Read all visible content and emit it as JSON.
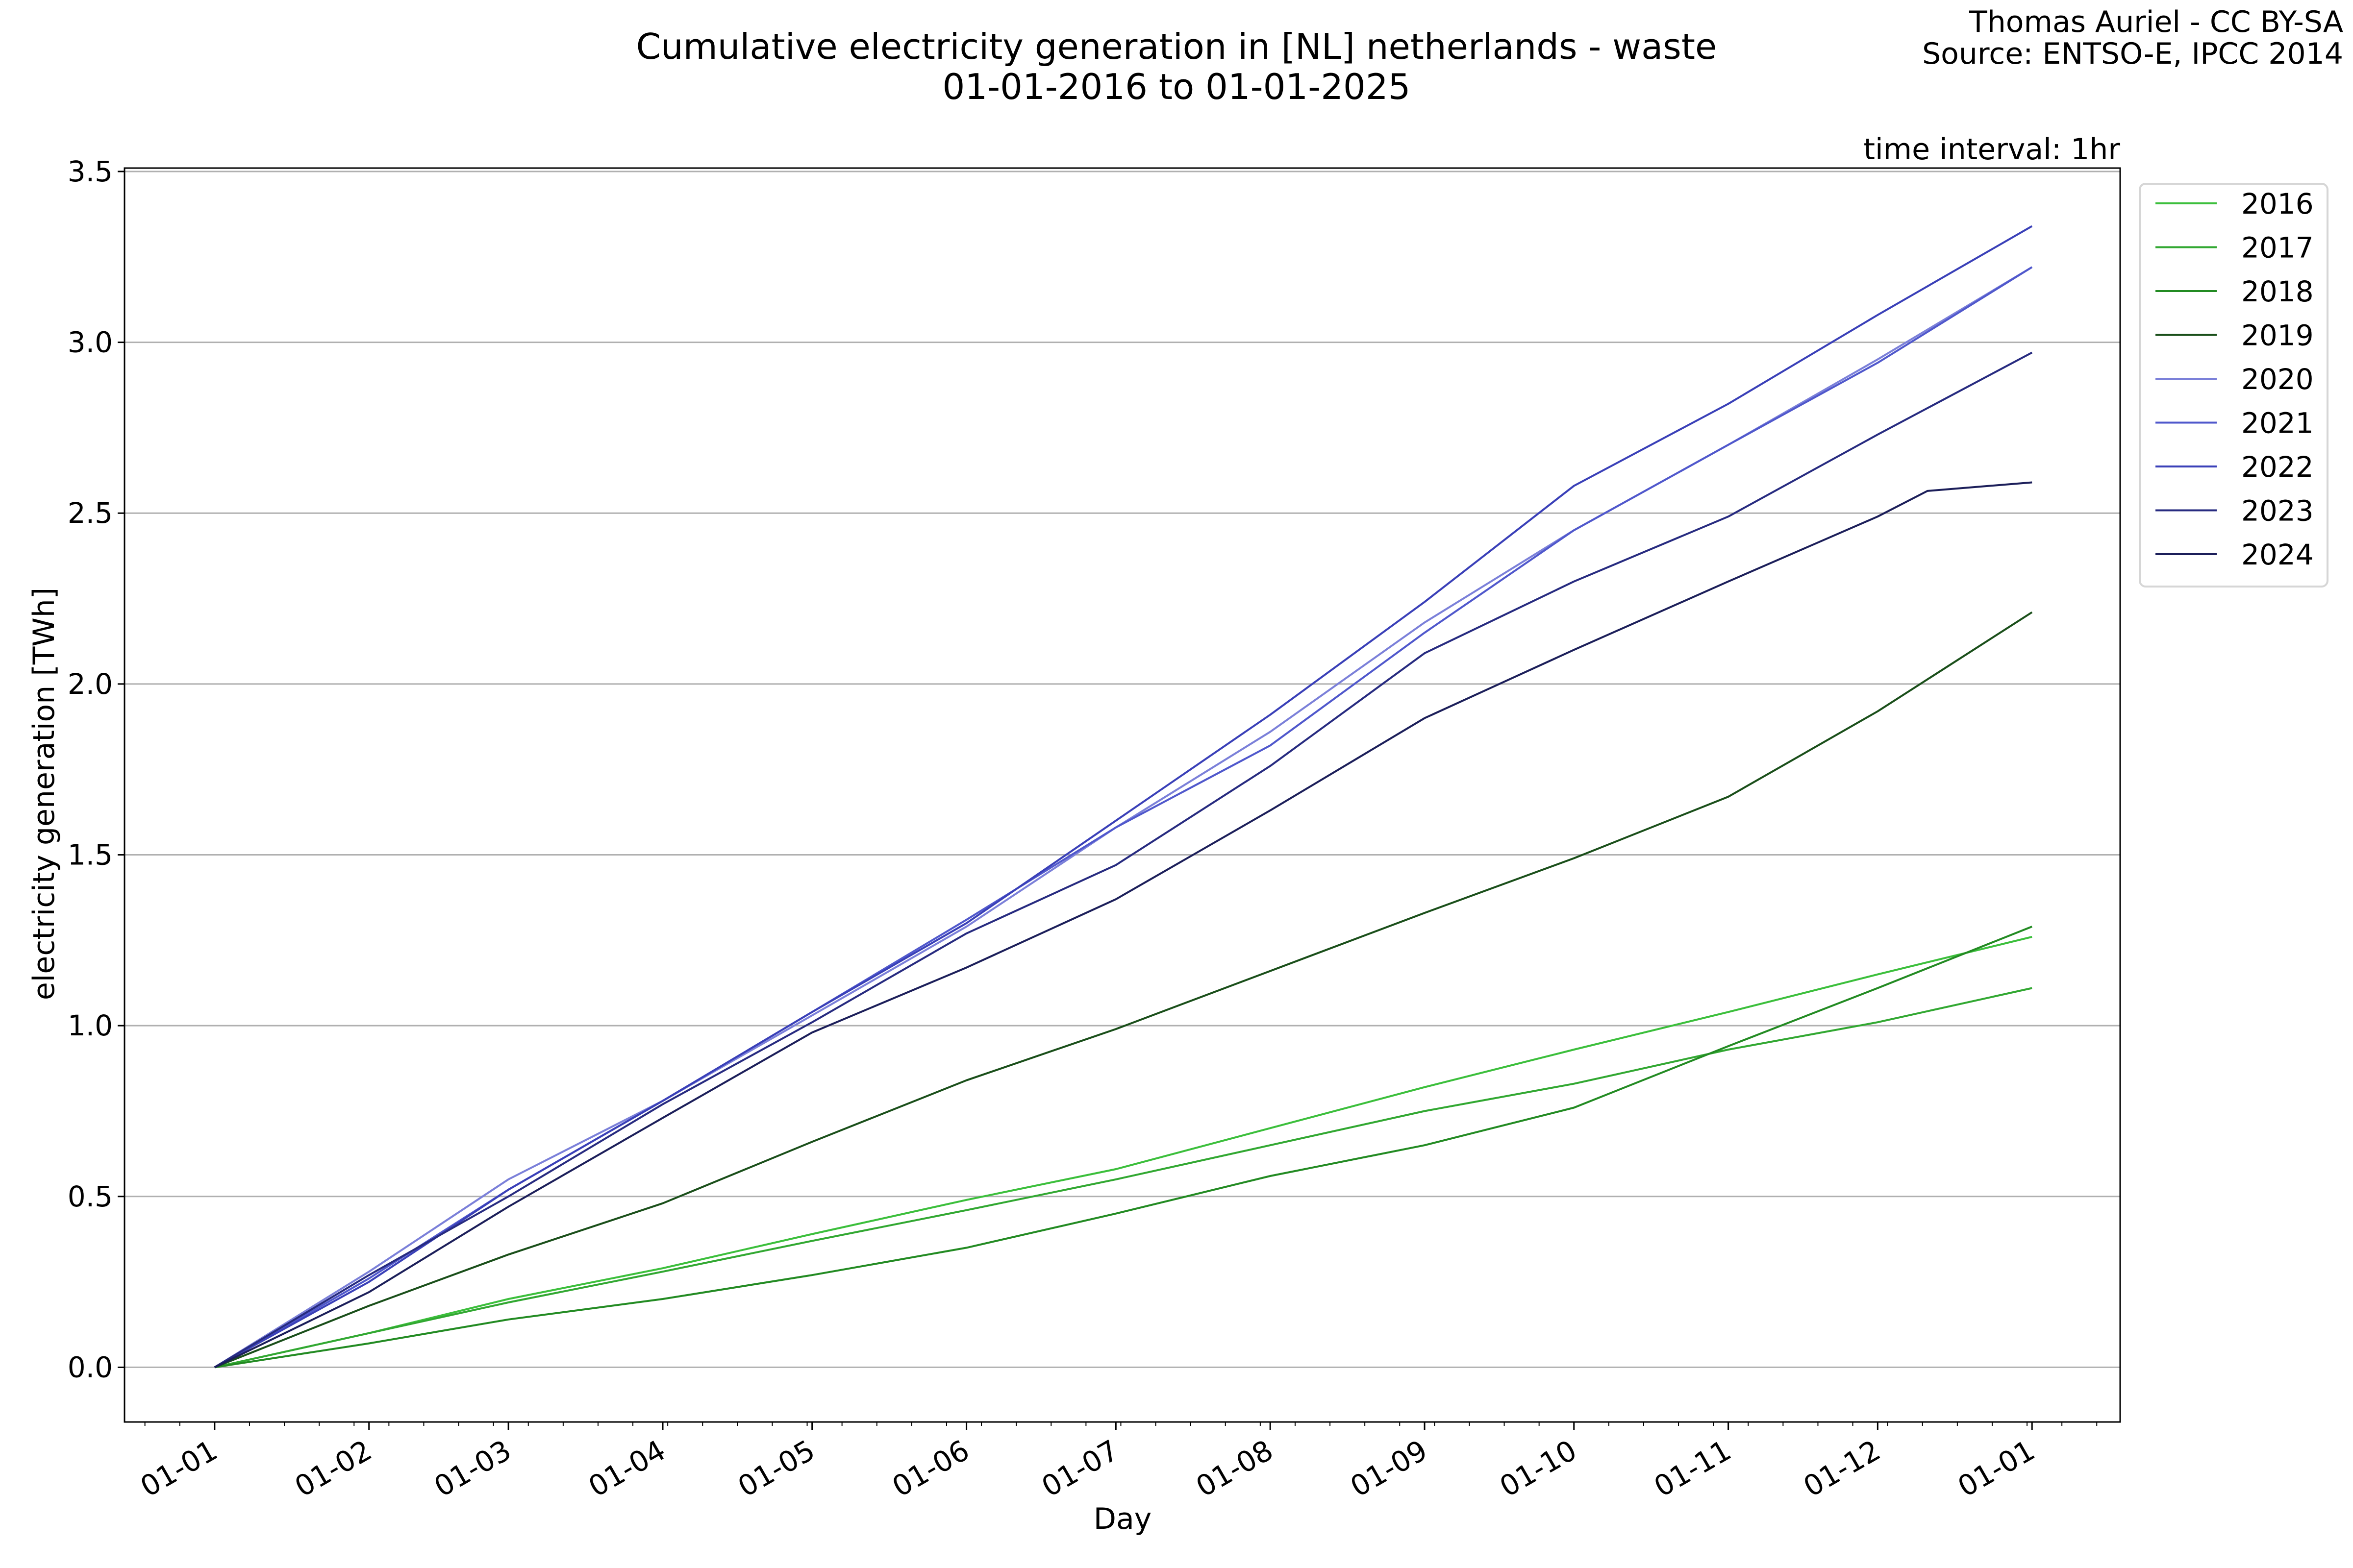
{
  "chart_data": {
    "type": "line",
    "title": "Cumulative electricity generation in [NL] netherlands - waste",
    "subtitle": "01-01-2016 to 01-01-2025",
    "credit_line1": "Thomas Auriel - CC BY-SA",
    "credit_line2": "Source: ENTSO-E, IPCC 2014",
    "annotation": "time interval: 1hr",
    "xlabel": "Day",
    "ylabel": "electricity generation [TWh]",
    "x_tick_labels": [
      "01-01",
      "01-02",
      "01-03",
      "01-04",
      "01-05",
      "01-06",
      "01-07",
      "01-08",
      "01-09",
      "01-10",
      "01-11",
      "01-12",
      "01-01"
    ],
    "x_days": [
      0,
      31,
      59,
      90,
      120,
      151,
      181,
      212,
      243,
      273,
      304,
      334,
      365
    ],
    "y_ticks": [
      "0.0",
      "0.5",
      "1.0",
      "1.5",
      "2.0",
      "2.5",
      "3.0",
      "3.5"
    ],
    "ylim": [
      -0.16,
      3.51
    ],
    "grid": "horizontal",
    "legend_placement": "outside-top-right",
    "series": [
      {
        "name": "2016",
        "color": "#3cbf3c",
        "values": [
          0,
          0.1,
          0.2,
          0.29,
          0.39,
          0.49,
          0.58,
          0.7,
          0.82,
          0.93,
          1.04,
          1.15,
          1.26
        ]
      },
      {
        "name": "2017",
        "color": "#32a832",
        "values": [
          0,
          0.1,
          0.19,
          0.28,
          0.37,
          0.46,
          0.55,
          0.65,
          0.75,
          0.83,
          0.93,
          1.01,
          1.11
        ]
      },
      {
        "name": "2018",
        "color": "#238b23",
        "values": [
          0,
          0.07,
          0.14,
          0.2,
          0.27,
          0.35,
          0.45,
          0.56,
          0.65,
          0.76,
          0.94,
          1.11,
          1.29
        ]
      },
      {
        "name": "2019",
        "color": "#1a4f1a",
        "values": [
          0,
          0.18,
          0.33,
          0.48,
          0.66,
          0.84,
          0.99,
          1.16,
          1.33,
          1.49,
          1.67,
          1.92,
          2.21
        ]
      },
      {
        "name": "2020",
        "color": "#7b80d9",
        "values": [
          0,
          0.28,
          0.55,
          0.78,
          1.03,
          1.29,
          1.58,
          1.86,
          2.18,
          2.45,
          2.7,
          2.95,
          3.22
        ]
      },
      {
        "name": "2021",
        "color": "#5058cc",
        "values": [
          0,
          0.26,
          0.52,
          0.78,
          1.04,
          1.31,
          1.58,
          1.82,
          2.15,
          2.45,
          2.7,
          2.94,
          3.22
        ]
      },
      {
        "name": "2022",
        "color": "#3a40b8",
        "values": [
          0,
          0.25,
          0.52,
          0.78,
          1.04,
          1.3,
          1.6,
          1.91,
          2.24,
          2.58,
          2.82,
          3.08,
          3.34
        ]
      },
      {
        "name": "2023",
        "color": "#272b80",
        "values": [
          0,
          0.27,
          0.5,
          0.77,
          1.01,
          1.27,
          1.47,
          1.76,
          2.09,
          2.3,
          2.49,
          2.73,
          2.97
        ]
      },
      {
        "name": "2024",
        "color": "#1c1f5a",
        "values": [
          0,
          0.22,
          0.47,
          0.73,
          0.98,
          1.17,
          1.37,
          1.63,
          1.9,
          2.1,
          2.3,
          2.49,
          2.59
        ]
      }
    ]
  }
}
